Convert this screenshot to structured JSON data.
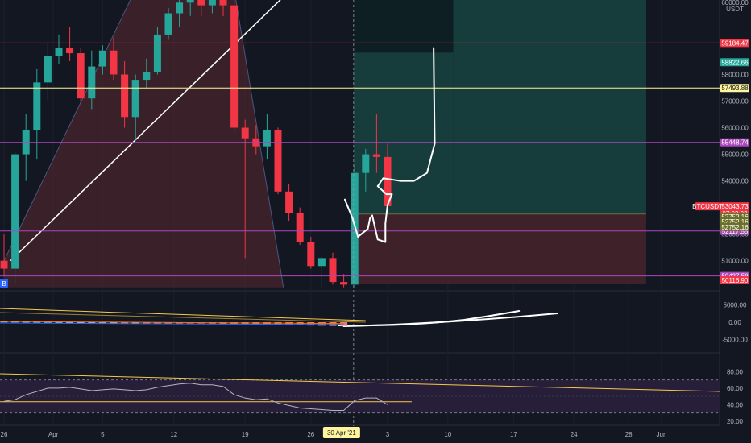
{
  "chart_data": {
    "type": "candlestick",
    "symbol": "BTCUSDT",
    "price_axis": {
      "unit": "USDT",
      "top_tick": "60000.00",
      "ticks": [
        "58000.00",
        "57000.00",
        "56000.00",
        "55000.00",
        "54000.00",
        "53000.00",
        "52000.00",
        "51000.00"
      ],
      "range": [
        49900,
        60800
      ]
    },
    "date_axis": {
      "labels": [
        "26",
        "Apr",
        "5",
        "12",
        "19",
        "26",
        "30 Apr '21",
        "3",
        "10",
        "17",
        "24",
        "28",
        "Jun"
      ],
      "label_slots": [
        0,
        4.5,
        9,
        15.5,
        22,
        28,
        30.8,
        35,
        40.5,
        46.5,
        52,
        57,
        60
      ],
      "slots": 64
    },
    "candles": [
      {
        "o": 51000,
        "h": 52000,
        "l": 50400,
        "c": 50700
      },
      {
        "o": 50700,
        "h": 55100,
        "l": 50100,
        "c": 55000
      },
      {
        "o": 55000,
        "h": 56500,
        "l": 54000,
        "c": 55900
      },
      {
        "o": 55900,
        "h": 58200,
        "l": 54800,
        "c": 57700
      },
      {
        "o": 57700,
        "h": 59200,
        "l": 57000,
        "c": 58700
      },
      {
        "o": 58700,
        "h": 59500,
        "l": 58400,
        "c": 59000
      },
      {
        "o": 59000,
        "h": 59800,
        "l": 58500,
        "c": 58800
      },
      {
        "o": 58800,
        "h": 59000,
        "l": 56900,
        "c": 57100
      },
      {
        "o": 57100,
        "h": 58900,
        "l": 56700,
        "c": 58300
      },
      {
        "o": 58300,
        "h": 59100,
        "l": 58000,
        "c": 58900
      },
      {
        "o": 58900,
        "h": 59400,
        "l": 57800,
        "c": 58000
      },
      {
        "o": 58000,
        "h": 58500,
        "l": 56000,
        "c": 56400
      },
      {
        "o": 56400,
        "h": 58000,
        "l": 55500,
        "c": 57800
      },
      {
        "o": 57800,
        "h": 58600,
        "l": 57500,
        "c": 58100
      },
      {
        "o": 58100,
        "h": 59800,
        "l": 58000,
        "c": 59500
      },
      {
        "o": 59500,
        "h": 60500,
        "l": 59300,
        "c": 60300
      },
      {
        "o": 60300,
        "h": 61500,
        "l": 59800,
        "c": 60700
      },
      {
        "o": 60700,
        "h": 61200,
        "l": 60200,
        "c": 60800
      },
      {
        "o": 60800,
        "h": 61000,
        "l": 60200,
        "c": 60600
      },
      {
        "o": 60600,
        "h": 61000,
        "l": 60300,
        "c": 60800
      },
      {
        "o": 60800,
        "h": 61500,
        "l": 60200,
        "c": 60600
      },
      {
        "o": 60600,
        "h": 60800,
        "l": 55800,
        "c": 56000
      },
      {
        "o": 56000,
        "h": 56300,
        "l": 51100,
        "c": 55600
      },
      {
        "o": 55600,
        "h": 56100,
        "l": 55000,
        "c": 55300
      },
      {
        "o": 55300,
        "h": 56500,
        "l": 54800,
        "c": 55900
      },
      {
        "o": 55900,
        "h": 56000,
        "l": 53500,
        "c": 53600
      },
      {
        "o": 53600,
        "h": 53900,
        "l": 52500,
        "c": 52800
      },
      {
        "o": 52800,
        "h": 53000,
        "l": 51600,
        "c": 51700
      },
      {
        "o": 51700,
        "h": 51900,
        "l": 50700,
        "c": 50800
      },
      {
        "o": 50800,
        "h": 51200,
        "l": 50000,
        "c": 51100
      },
      {
        "o": 51100,
        "h": 51300,
        "l": 50100,
        "c": 50200
      },
      {
        "o": 50200,
        "h": 50500,
        "l": 50000,
        "c": 50100
      },
      {
        "o": 50100,
        "h": 54600,
        "l": 50000,
        "c": 54300
      },
      {
        "o": 54300,
        "h": 55200,
        "l": 53600,
        "c": 55000
      },
      {
        "o": 55000,
        "h": 56500,
        "l": 54300,
        "c": 54900
      },
      {
        "o": 54900,
        "h": 55400,
        "l": 52800,
        "c": 53050
      }
    ],
    "horizontal_lines": [
      {
        "price": 59184.47,
        "label": "59184.47",
        "color": "#f23645"
      },
      {
        "price": 57493.88,
        "label": "57493.88",
        "color": "#fff59d"
      },
      {
        "price": 55448.74,
        "label": "55448.74",
        "color": "#ab47bc"
      },
      {
        "price": 52117.58,
        "label": "52117.58",
        "color": "#ab47bc"
      },
      {
        "price": 50427.56,
        "label": "50427.56",
        "color": "#ab47bc"
      }
    ],
    "price_labels": [
      {
        "price": 58822.66,
        "label": "58822.66",
        "color": "#26a69a"
      },
      {
        "price": 53043.73,
        "label": "53043.73",
        "color": "#f23645",
        "symbol_tag": "BTCUSDT",
        "countdown": "07:03:03"
      },
      {
        "price": 52752.16,
        "label": "52752.16",
        "color": "#6b6f2a"
      },
      {
        "price": 52752.16,
        "label": "52752.16",
        "color": "#6b6f2a"
      },
      {
        "price": 52752.16,
        "label": "52752.16",
        "color": "#6b6f2a"
      },
      {
        "price": 50116.9,
        "label": "50116.90",
        "color": "#f23645"
      }
    ],
    "long_position": {
      "entry": 52752.16,
      "target": 58822.66,
      "stop": 50116.9
    },
    "macd_panel": {
      "ticks": [
        "5000.00",
        "0.00",
        "-5000.00"
      ],
      "range": [
        -7000,
        7000
      ]
    },
    "rsi_panel": {
      "ticks": [
        "80.00",
        "60.00",
        "40.00",
        "20.00"
      ],
      "range": [
        15,
        95
      ],
      "band": [
        30,
        70
      ],
      "values": [
        44,
        46,
        52,
        56,
        60,
        60,
        61,
        59,
        57,
        58,
        59,
        58,
        57,
        58,
        61,
        63,
        65,
        66,
        64,
        64,
        62,
        52,
        48,
        46,
        47,
        42,
        39,
        36,
        35,
        34,
        33,
        33,
        45,
        48,
        48,
        40
      ]
    },
    "colors": {
      "up": "#26a69a",
      "down": "#f23645",
      "bg": "#131722",
      "grid": "#1e222d",
      "axis_text": "#b2b5be"
    },
    "marker": "B"
  }
}
